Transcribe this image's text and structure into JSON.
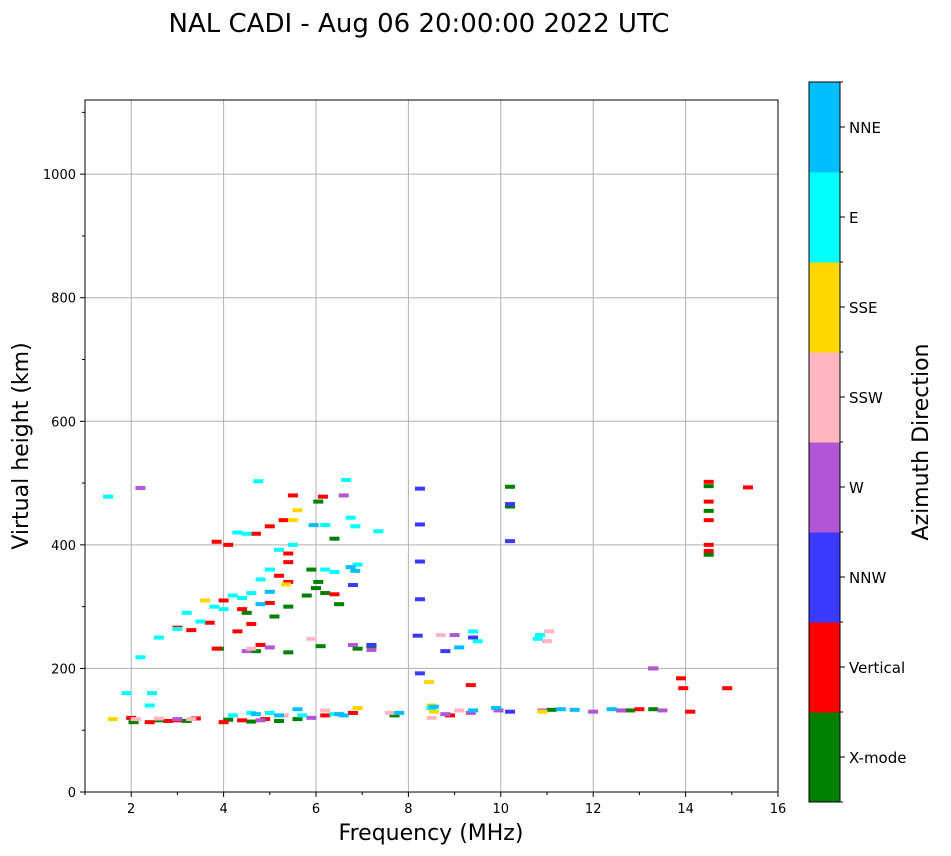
{
  "chart_data": {
    "type": "scatter",
    "title": "NAL CADI - Aug 06 20:00:00 2022 UTC",
    "xlabel": "Frequency (MHz)",
    "ylabel": "Virtual height (km)",
    "xlim": [
      1,
      16
    ],
    "ylim": [
      0,
      1120
    ],
    "xticks": [
      2,
      4,
      6,
      8,
      10,
      12,
      14,
      16
    ],
    "yticks": [
      0,
      200,
      400,
      600,
      800,
      1000
    ],
    "grid": true,
    "colorbar": {
      "label": "Azimuth Direction",
      "categories": [
        "X-mode",
        "Vertical",
        "NNW",
        "W",
        "SSW",
        "SSE",
        "E",
        "NNE"
      ],
      "colors": [
        "#008000",
        "#ff0000",
        "#3a3aff",
        "#b256d6",
        "#ffb6c1",
        "#ffd700",
        "#00ffff",
        "#00bfff"
      ]
    },
    "series": [
      {
        "name": "X-mode",
        "points": [
          [
            2.05,
            113
          ],
          [
            2.6,
            116
          ],
          [
            3.2,
            115
          ],
          [
            4.1,
            117
          ],
          [
            4.6,
            114
          ],
          [
            5.2,
            115
          ],
          [
            5.6,
            118
          ],
          [
            3.9,
            232
          ],
          [
            4.7,
            228
          ],
          [
            5.4,
            226
          ],
          [
            6.1,
            236
          ],
          [
            6.9,
            232
          ],
          [
            7.2,
            236
          ],
          [
            4.5,
            290
          ],
          [
            5.1,
            284
          ],
          [
            5.4,
            300
          ],
          [
            5.8,
            318
          ],
          [
            6.0,
            330
          ],
          [
            6.2,
            322
          ],
          [
            6.5,
            304
          ],
          [
            5.9,
            360
          ],
          [
            6.05,
            340
          ],
          [
            6.4,
            410
          ],
          [
            6.05,
            470
          ],
          [
            7.7,
            124
          ],
          [
            10.2,
            494
          ],
          [
            10.2,
            462
          ],
          [
            11.1,
            133
          ],
          [
            12.8,
            132
          ],
          [
            13.3,
            134
          ],
          [
            14.5,
            495
          ],
          [
            14.5,
            455
          ],
          [
            14.5,
            384
          ]
        ]
      },
      {
        "name": "Vertical",
        "points": [
          [
            2.0,
            120
          ],
          [
            2.4,
            113
          ],
          [
            2.8,
            115
          ],
          [
            3.0,
            116
          ],
          [
            3.4,
            119
          ],
          [
            4.0,
            113
          ],
          [
            4.4,
            116
          ],
          [
            4.9,
            118
          ],
          [
            6.2,
            124
          ],
          [
            6.8,
            128
          ],
          [
            3.3,
            262
          ],
          [
            3.0,
            266
          ],
          [
            3.7,
            274
          ],
          [
            3.85,
            232
          ],
          [
            4.0,
            310
          ],
          [
            4.4,
            296
          ],
          [
            5.2,
            350
          ],
          [
            5.0,
            306
          ],
          [
            5.4,
            340
          ],
          [
            4.8,
            238
          ],
          [
            4.3,
            260
          ],
          [
            4.6,
            272
          ],
          [
            3.85,
            405
          ],
          [
            4.1,
            400
          ],
          [
            4.7,
            418
          ],
          [
            5.0,
            430
          ],
          [
            5.3,
            440
          ],
          [
            5.4,
            372
          ],
          [
            5.4,
            386
          ],
          [
            5.5,
            480
          ],
          [
            6.15,
            478
          ],
          [
            6.4,
            320
          ],
          [
            8.9,
            124
          ],
          [
            9.35,
            173
          ],
          [
            12.6,
            132
          ],
          [
            13.0,
            134
          ],
          [
            13.9,
            184
          ],
          [
            13.95,
            168
          ],
          [
            14.1,
            130
          ],
          [
            14.5,
            502
          ],
          [
            14.5,
            470
          ],
          [
            14.5,
            440
          ],
          [
            14.5,
            400
          ],
          [
            14.5,
            390
          ],
          [
            15.35,
            493
          ],
          [
            14.9,
            168
          ],
          [
            13.3,
            200
          ]
        ]
      },
      {
        "name": "NNW",
        "points": [
          [
            8.25,
            491
          ],
          [
            8.25,
            433
          ],
          [
            8.25,
            373
          ],
          [
            8.25,
            312
          ],
          [
            8.2,
            253
          ],
          [
            8.25,
            192
          ],
          [
            10.2,
            406
          ],
          [
            10.2,
            466
          ],
          [
            10.2,
            130
          ],
          [
            9.4,
            250
          ],
          [
            7.2,
            238
          ],
          [
            6.8,
            335
          ],
          [
            8.8,
            228
          ]
        ]
      },
      {
        "name": "W",
        "points": [
          [
            2.2,
            492
          ],
          [
            6.6,
            480
          ],
          [
            4.5,
            228
          ],
          [
            5.0,
            234
          ],
          [
            6.8,
            238
          ],
          [
            7.2,
            230
          ],
          [
            8.8,
            126
          ],
          [
            9.35,
            128
          ],
          [
            9.95,
            132
          ],
          [
            10.9,
            132
          ],
          [
            12.0,
            130
          ],
          [
            12.6,
            132
          ],
          [
            13.5,
            132
          ],
          [
            3.0,
            118
          ],
          [
            4.8,
            116
          ],
          [
            5.9,
            120
          ],
          [
            9.0,
            254
          ],
          [
            13.3,
            200
          ]
        ]
      },
      {
        "name": "SSW",
        "points": [
          [
            2.1,
            118
          ],
          [
            2.6,
            119
          ],
          [
            3.3,
            118
          ],
          [
            5.3,
            124
          ],
          [
            6.2,
            132
          ],
          [
            7.6,
            128
          ],
          [
            8.5,
            120
          ],
          [
            8.7,
            254
          ],
          [
            9.1,
            132
          ],
          [
            11.0,
            244
          ],
          [
            11.05,
            260
          ],
          [
            5.9,
            248
          ],
          [
            4.6,
            232
          ]
        ]
      },
      {
        "name": "SSE",
        "points": [
          [
            1.6,
            118
          ],
          [
            3.6,
            310
          ],
          [
            5.35,
            336
          ],
          [
            5.5,
            440
          ],
          [
            5.6,
            456
          ],
          [
            8.45,
            178
          ],
          [
            8.5,
            140
          ],
          [
            8.55,
            130
          ],
          [
            10.9,
            130
          ],
          [
            6.9,
            136
          ]
        ]
      },
      {
        "name": "E",
        "points": [
          [
            1.5,
            478
          ],
          [
            1.9,
            160
          ],
          [
            2.45,
            160
          ],
          [
            2.4,
            140
          ],
          [
            2.2,
            218
          ],
          [
            2.6,
            250
          ],
          [
            3.0,
            264
          ],
          [
            3.2,
            290
          ],
          [
            3.5,
            276
          ],
          [
            3.8,
            300
          ],
          [
            4.0,
            296
          ],
          [
            4.2,
            318
          ],
          [
            4.4,
            314
          ],
          [
            4.6,
            322
          ],
          [
            4.8,
            344
          ],
          [
            5.0,
            360
          ],
          [
            4.3,
            420
          ],
          [
            4.5,
            418
          ],
          [
            4.75,
            503
          ],
          [
            5.2,
            392
          ],
          [
            5.5,
            400
          ],
          [
            6.2,
            360
          ],
          [
            6.4,
            356
          ],
          [
            6.9,
            368
          ],
          [
            7.35,
            422
          ],
          [
            6.65,
            505
          ],
          [
            6.2,
            432
          ],
          [
            6.85,
            430
          ],
          [
            6.75,
            444
          ],
          [
            5.7,
            124
          ],
          [
            6.4,
            126
          ],
          [
            9.4,
            260
          ],
          [
            9.5,
            244
          ],
          [
            10.8,
            248
          ],
          [
            10.85,
            254
          ],
          [
            4.2,
            124
          ],
          [
            4.6,
            128
          ],
          [
            5.0,
            128
          ],
          [
            8.5,
            136
          ]
        ]
      },
      {
        "name": "NNE",
        "points": [
          [
            4.7,
            126
          ],
          [
            5.2,
            124
          ],
          [
            5.6,
            134
          ],
          [
            6.6,
            124
          ],
          [
            7.8,
            128
          ],
          [
            8.55,
            138
          ],
          [
            9.4,
            132
          ],
          [
            9.9,
            136
          ],
          [
            11.3,
            134
          ],
          [
            11.6,
            133
          ],
          [
            12.4,
            134
          ],
          [
            4.8,
            304
          ],
          [
            5.0,
            324
          ],
          [
            6.75,
            364
          ],
          [
            6.85,
            358
          ],
          [
            5.95,
            432
          ],
          [
            6.5,
            126
          ],
          [
            9.1,
            234
          ]
        ]
      }
    ]
  }
}
